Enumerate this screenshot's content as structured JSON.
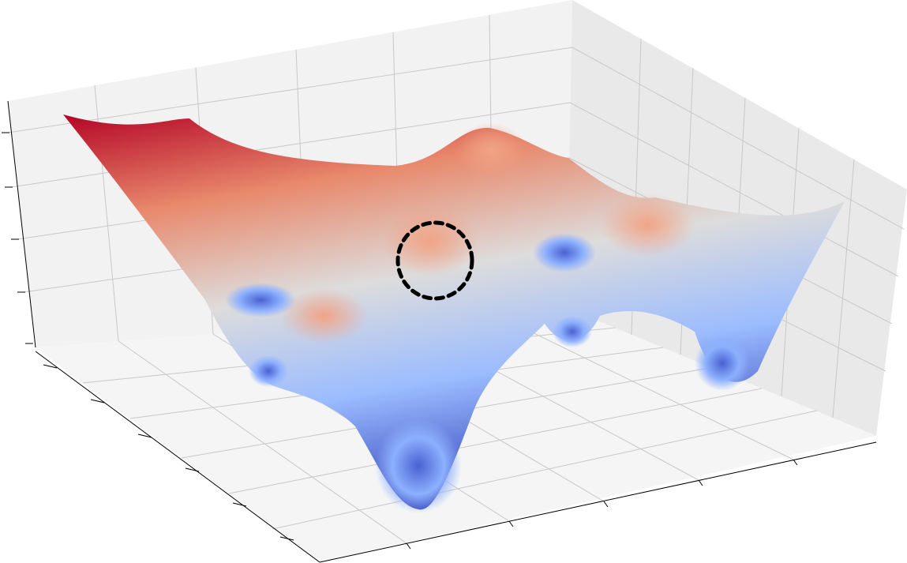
{
  "chart_data": {
    "type": "surface"
  }
}
